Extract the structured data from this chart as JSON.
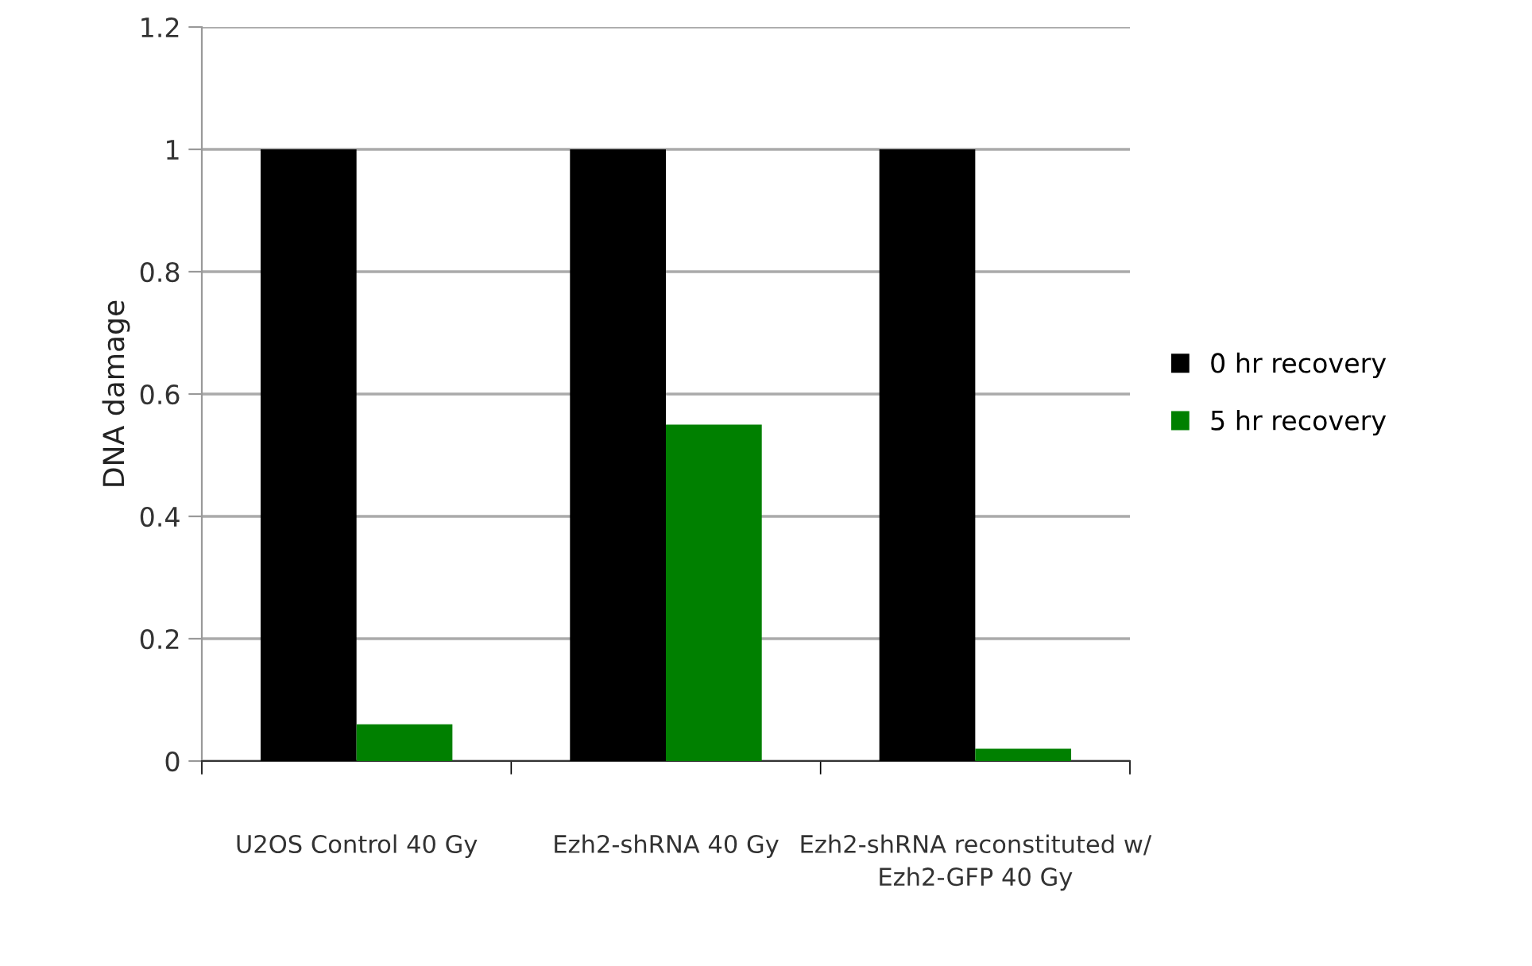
{
  "chart_data": {
    "type": "bar",
    "ylabel": "DNA damage",
    "categories": [
      "U2OS Control 40 Gy",
      "Ezh2-shRNA 40 Gy",
      "Ezh2-shRNA reconstituted w/ Ezh2-GFP 40 Gy"
    ],
    "series": [
      {
        "name": "0 hr recovery",
        "color": "#000000",
        "values": [
          1,
          1,
          1
        ]
      },
      {
        "name": "5 hr recovery",
        "color": "#008000",
        "values": [
          0.06,
          0.55,
          0.02
        ]
      }
    ],
    "ylim": [
      0,
      1.2
    ],
    "yticks": [
      0,
      0.2,
      0.4,
      0.6,
      0.8,
      1,
      1.2
    ],
    "grid": "y",
    "legend": "right"
  }
}
